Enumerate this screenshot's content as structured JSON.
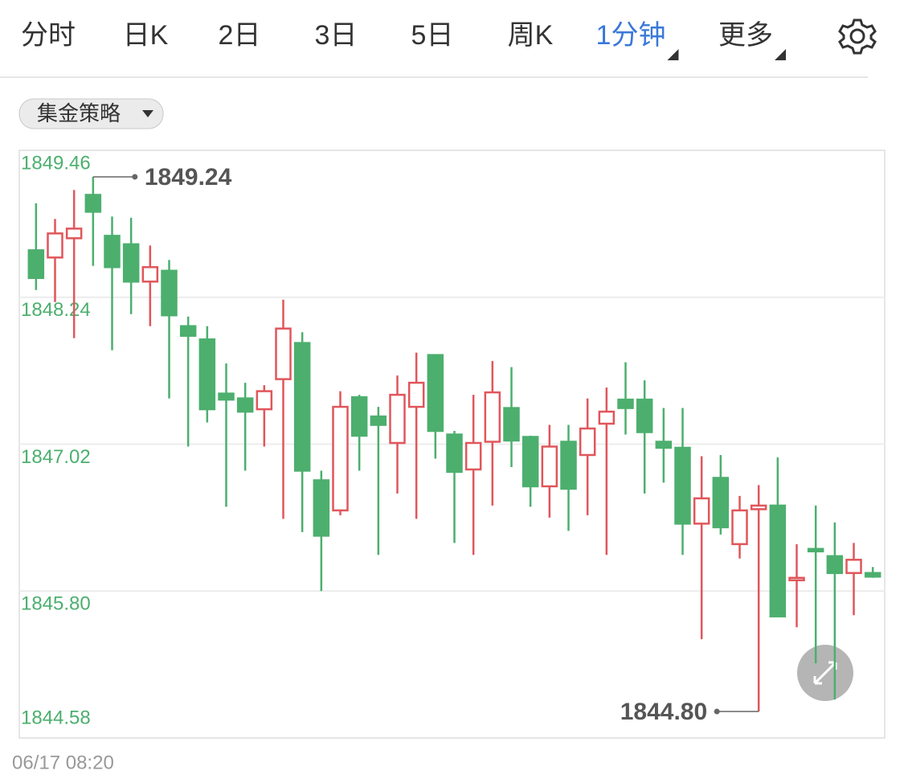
{
  "tabs": [
    {
      "label": "分时"
    },
    {
      "label": "日K"
    },
    {
      "label": "2日"
    },
    {
      "label": "3日"
    },
    {
      "label": "5日"
    },
    {
      "label": "周K"
    },
    {
      "label": "1分钟",
      "active": true,
      "dropdown": true
    },
    {
      "label": "更多",
      "dropdown": true
    }
  ],
  "strategy_button": "集金策略",
  "chart_data": {
    "type": "candlestick",
    "ylim": [
      1844.58,
      1849.46
    ],
    "yticks": [
      1849.46,
      1848.24,
      1847.02,
      {
        "value": 1845.8,
        "label": "1845.80"
      },
      1844.58
    ],
    "grid": true,
    "up_color": "#e0565b",
    "down_color": "#4caf6e",
    "tick_color": "#4caf6e",
    "open": [
      1848.63,
      1848.57,
      1848.73,
      1849.09,
      1848.75,
      1848.68,
      1848.37,
      1848.46,
      1848.0,
      1847.89,
      1847.44,
      1847.4,
      1847.31,
      1847.56,
      1847.86,
      1846.72,
      1846.47,
      1847.41,
      1847.25,
      1847.03,
      1847.33,
      1847.76,
      1847.1,
      1846.81,
      1847.04,
      1847.32,
      1847.08,
      1846.67,
      1847.04,
      1846.93,
      1847.19,
      1847.39,
      1847.39,
      1847.04,
      1846.99,
      1846.36,
      1846.74,
      1846.19,
      1846.48,
      1846.51,
      1845.89,
      1846.15,
      1846.09,
      1845.95,
      1845.95
    ],
    "high": [
      1849.02,
      1848.89,
      1849.13,
      1849.24,
      1848.91,
      1848.9,
      1848.67,
      1848.55,
      1848.08,
      1848.0,
      1847.69,
      1847.53,
      1847.51,
      1848.22,
      1847.95,
      1846.8,
      1847.46,
      1847.43,
      1847.33,
      1847.59,
      1847.78,
      1847.76,
      1847.13,
      1847.43,
      1847.71,
      1847.66,
      1847.09,
      1847.18,
      1847.18,
      1847.4,
      1847.49,
      1847.7,
      1847.55,
      1847.32,
      1847.32,
      1846.92,
      1846.93,
      1846.59,
      1846.68,
      1846.91,
      1846.19,
      1846.51,
      1846.37,
      1846.2,
      1846.0
    ],
    "low": [
      1848.3,
      1848.2,
      1847.9,
      1848.5,
      1847.8,
      1848.1,
      1848.0,
      1847.4,
      1847.0,
      1847.2,
      1846.5,
      1846.8,
      1847.0,
      1846.4,
      1846.29,
      1845.8,
      1846.43,
      1846.8,
      1846.1,
      1846.61,
      1846.4,
      1846.9,
      1846.2,
      1846.1,
      1846.51,
      1846.83,
      1846.5,
      1846.41,
      1846.3,
      1846.43,
      1846.1,
      1847.1,
      1846.61,
      1846.7,
      1846.1,
      1845.4,
      1846.27,
      1846.07,
      1844.8,
      1845.59,
      1845.5,
      1845.2,
      1844.9,
      1845.6,
      1845.91
    ],
    "close": [
      1848.4,
      1848.77,
      1848.81,
      1848.95,
      1848.49,
      1848.37,
      1848.49,
      1848.09,
      1847.92,
      1847.31,
      1847.39,
      1847.29,
      1847.46,
      1847.98,
      1846.8,
      1846.26,
      1847.33,
      1847.09,
      1847.18,
      1847.43,
      1847.53,
      1847.13,
      1846.79,
      1847.03,
      1847.45,
      1847.05,
      1846.67,
      1847.0,
      1846.65,
      1847.15,
      1847.29,
      1847.32,
      1847.12,
      1846.99,
      1846.36,
      1846.57,
      1846.33,
      1846.47,
      1846.51,
      1845.59,
      1845.91,
      1846.13,
      1845.95,
      1846.06,
      1845.92
    ],
    "annotations": [
      1849.24,
      {
        "value": 1844.8,
        "label": "1844.80"
      }
    ]
  },
  "timestamp": "06/17 08:20"
}
